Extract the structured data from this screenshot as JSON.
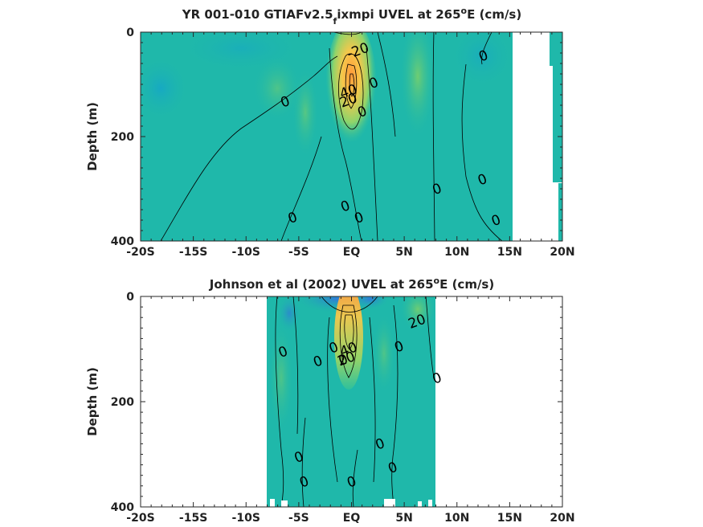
{
  "colors": {
    "background_field": "#1fb8aa",
    "blue_core": "#2f6fd6",
    "green_core": "#7fd06a",
    "yellow_core": "#f6c84b",
    "orange_core": "#ff9a3a",
    "missing": "#ffffff"
  },
  "chart_data": [
    {
      "type": "heatmap",
      "title_main": "YR 001-010 GTIAFv2.5",
      "title_sub": "f",
      "title_rest": "ixmpi UVEL at 265",
      "title_sup": "o",
      "title_tail": "E (cm/s)",
      "xlabel": "",
      "ylabel": "Depth (m)",
      "xlim": [
        -20,
        20
      ],
      "ylim": [
        400,
        0
      ],
      "x_ticks": [
        -20,
        -15,
        -10,
        -5,
        0,
        5,
        10,
        15,
        20
      ],
      "x_tick_labels": [
        "-20S",
        "-15S",
        "-10S",
        "-5S",
        "EQ",
        "5N",
        "10N",
        "15N",
        "20N"
      ],
      "y_ticks": [
        0,
        200,
        400
      ],
      "y_tick_labels": [
        "0",
        "200",
        "400"
      ],
      "data_extent_x": [
        -20,
        20
      ],
      "contour_labels": [
        {
          "text": "-20",
          "x": 0.6,
          "y": 35
        },
        {
          "text": "0",
          "x": 12.5,
          "y": 45
        },
        {
          "text": "0",
          "x": 2.1,
          "y": 97
        },
        {
          "text": "0",
          "x": -6.3,
          "y": 133
        },
        {
          "text": "40",
          "x": -0.3,
          "y": 113
        },
        {
          "text": "20",
          "x": -0.3,
          "y": 130
        },
        {
          "text": "0",
          "x": 1.0,
          "y": 152
        },
        {
          "text": "0",
          "x": 8.1,
          "y": 300
        },
        {
          "text": "0",
          "x": 12.4,
          "y": 282
        },
        {
          "text": "0",
          "x": -0.6,
          "y": 333
        },
        {
          "text": "0",
          "x": -5.6,
          "y": 355
        },
        {
          "text": "0",
          "x": 0.7,
          "y": 355
        },
        {
          "text": "0",
          "x": 13.7,
          "y": 360
        }
      ]
    },
    {
      "type": "heatmap",
      "title_main": "Johnson et al (2002) UVEL at 265",
      "title_sub": "",
      "title_rest": "",
      "title_sup": "o",
      "title_tail": "E (cm/s)",
      "xlabel": "",
      "ylabel": "Depth (m)",
      "xlim": [
        -20,
        20
      ],
      "ylim": [
        400,
        0
      ],
      "x_ticks": [
        -20,
        -15,
        -10,
        -5,
        0,
        5,
        10,
        15,
        20
      ],
      "x_tick_labels": [
        "-20S",
        "-15S",
        "-10S",
        "-5S",
        "EQ",
        "5N",
        "10N",
        "15N",
        "20N"
      ],
      "y_ticks": [
        0,
        200,
        400
      ],
      "y_tick_labels": [
        "0",
        "200",
        "400"
      ],
      "data_extent_x": [
        -8,
        8
      ],
      "contour_labels": [
        {
          "text": "20",
          "x": 6.2,
          "y": 47
        },
        {
          "text": "0",
          "x": -6.5,
          "y": 105
        },
        {
          "text": "0",
          "x": -1.7,
          "y": 97
        },
        {
          "text": "0",
          "x": 4.5,
          "y": 95
        },
        {
          "text": "40",
          "x": -0.3,
          "y": 100
        },
        {
          "text": "20",
          "x": -0.5,
          "y": 118
        },
        {
          "text": "0",
          "x": -3.2,
          "y": 123
        },
        {
          "text": "0",
          "x": -0.8,
          "y": 120
        },
        {
          "text": "0",
          "x": 8.1,
          "y": 155
        },
        {
          "text": "0",
          "x": 2.7,
          "y": 280
        },
        {
          "text": "0",
          "x": -5.0,
          "y": 305
        },
        {
          "text": "0",
          "x": 3.9,
          "y": 325
        },
        {
          "text": "0",
          "x": -4.5,
          "y": 352
        },
        {
          "text": "0",
          "x": 0.0,
          "y": 352
        }
      ]
    }
  ]
}
